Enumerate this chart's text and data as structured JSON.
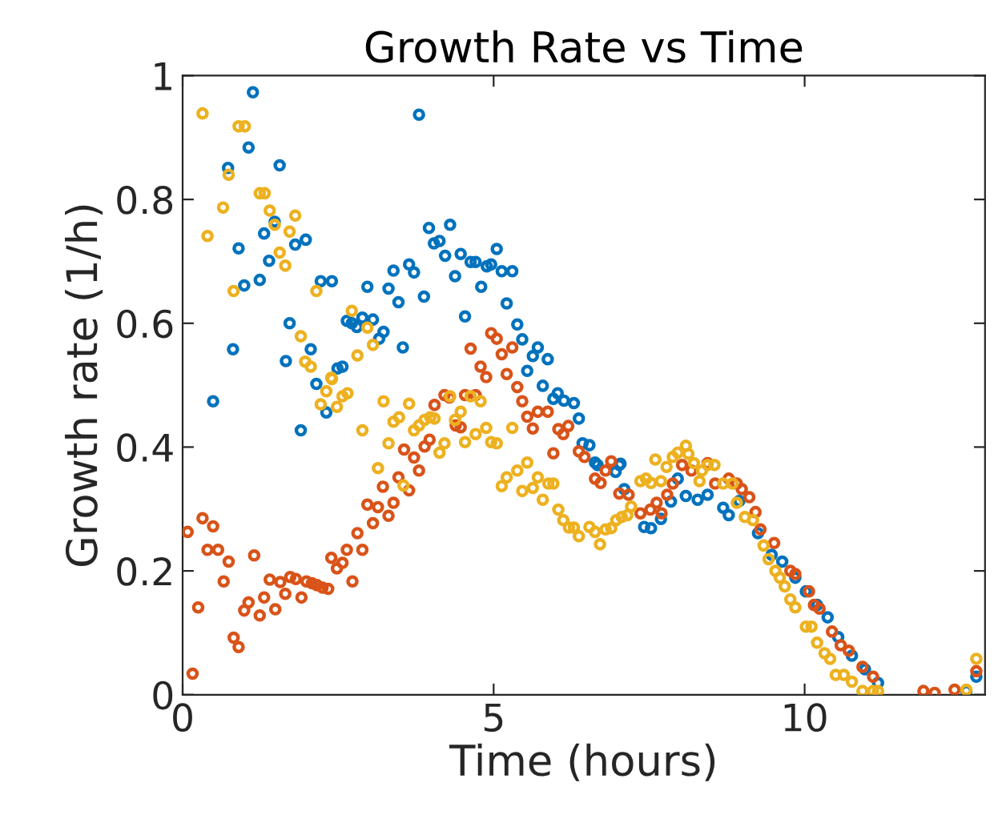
{
  "chart_data": {
    "type": "scatter",
    "title": "Growth Rate vs Time",
    "xlabel": "Time (hours)",
    "ylabel": "Growth rate (1/h)",
    "xlim": [
      0,
      12.9
    ],
    "ylim": [
      0,
      1
    ],
    "xticks": [
      0,
      5,
      10
    ],
    "yticks": [
      0,
      {
        "value": 0.2,
        "label": "0.2"
      },
      {
        "value": 0.4,
        "label": "0.4"
      },
      {
        "value": 0.6,
        "label": "0.6"
      },
      {
        "value": 0.8,
        "label": "0.8"
      },
      1
    ],
    "grid": false,
    "marker": "circle",
    "series": [
      {
        "color": "#0072bd",
        "x": [
          0.49,
          0.73,
          0.81,
          0.9,
          0.99,
          1.06,
          1.13,
          1.24,
          1.31,
          1.39,
          1.48,
          1.56,
          1.66,
          1.72,
          1.81,
          1.9,
          1.98,
          2.06,
          2.15,
          2.22,
          2.31,
          2.4,
          2.49,
          2.57,
          2.64,
          2.72,
          2.8,
          2.89,
          2.97,
          3.06,
          3.16,
          3.23,
          3.31,
          3.39,
          3.47,
          3.54,
          3.64,
          3.72,
          3.8,
          3.88,
          3.96,
          4.04,
          4.13,
          4.22,
          4.3,
          4.38,
          4.47,
          4.54,
          4.63,
          4.71,
          4.8,
          4.89,
          4.96,
          5.05,
          5.13,
          5.21,
          5.3,
          5.38,
          5.46,
          5.54,
          5.63,
          5.71,
          5.79,
          5.87,
          5.96,
          6.03,
          6.13,
          6.29,
          6.37,
          6.43,
          6.54,
          6.63,
          6.67,
          6.96,
          7.02,
          7.04,
          7.1,
          7.42,
          7.53,
          7.69,
          7.85,
          7.96,
          8.09,
          8.28,
          8.44,
          8.69,
          8.78,
          8.95,
          9.25,
          9.47,
          9.64,
          9.85,
          10.02,
          10.2,
          10.37,
          10.54,
          10.76,
          10.97,
          11.18,
          12.6,
          12.76
        ],
        "values": [
          0.474,
          0.851,
          0.558,
          0.721,
          0.661,
          0.884,
          0.973,
          0.67,
          0.745,
          0.701,
          0.764,
          0.855,
          0.539,
          0.6,
          0.727,
          0.427,
          0.735,
          0.558,
          0.502,
          0.668,
          0.456,
          0.668,
          0.527,
          0.53,
          0.604,
          0.6,
          0.594,
          0.609,
          0.659,
          0.606,
          0.575,
          0.586,
          0.656,
          0.685,
          0.634,
          0.561,
          0.695,
          0.682,
          0.937,
          0.643,
          0.754,
          0.729,
          0.733,
          0.709,
          0.759,
          0.676,
          0.712,
          0.611,
          0.699,
          0.699,
          0.659,
          0.692,
          0.695,
          0.72,
          0.684,
          0.632,
          0.684,
          0.598,
          0.574,
          0.523,
          0.547,
          0.561,
          0.499,
          0.542,
          0.478,
          0.487,
          0.475,
          0.471,
          0.446,
          0.406,
          0.403,
          0.375,
          0.371,
          0.36,
          0.371,
          0.373,
          0.332,
          0.271,
          0.269,
          0.284,
          0.312,
          0.349,
          0.321,
          0.315,
          0.323,
          0.302,
          0.29,
          0.313,
          0.261,
          0.226,
          0.215,
          0.189,
          0.167,
          0.145,
          0.125,
          0.093,
          0.063,
          0.041,
          0.019,
          0.006,
          0.029
        ]
      },
      {
        "color": "#d95319",
        "x": [
          0.08,
          0.16,
          0.25,
          0.32,
          0.4,
          0.49,
          0.57,
          0.66,
          0.74,
          0.82,
          0.9,
          0.99,
          1.06,
          1.15,
          1.24,
          1.31,
          1.4,
          1.49,
          1.57,
          1.65,
          1.73,
          1.82,
          1.91,
          1.99,
          2.08,
          2.16,
          2.25,
          2.34,
          2.39,
          2.48,
          2.57,
          2.64,
          2.73,
          2.81,
          2.89,
          2.97,
          3.06,
          3.14,
          3.22,
          3.31,
          3.39,
          3.47,
          3.56,
          3.64,
          3.72,
          3.8,
          3.89,
          3.97,
          4.05,
          4.21,
          4.29,
          4.39,
          4.47,
          4.54,
          4.63,
          4.71,
          4.79,
          4.88,
          4.96,
          5.05,
          5.13,
          5.21,
          5.3,
          5.38,
          5.46,
          5.54,
          5.63,
          5.71,
          5.87,
          5.96,
          6.04,
          6.12,
          6.2,
          6.37,
          6.46,
          6.63,
          6.72,
          6.8,
          6.89,
          7.02,
          7.17,
          7.36,
          7.52,
          7.62,
          7.7,
          7.79,
          7.88,
          8.03,
          8.18,
          8.44,
          8.56,
          8.78,
          8.91,
          8.99,
          9.11,
          9.21,
          9.29,
          9.51,
          9.77,
          9.85,
          10.07,
          10.15,
          10.24,
          10.44,
          10.58,
          10.71,
          10.93,
          11.1,
          11.91,
          12.09,
          12.41,
          12.76
        ],
        "values": [
          0.263,
          0.034,
          0.141,
          0.285,
          0.234,
          0.272,
          0.234,
          0.183,
          0.215,
          0.092,
          0.077,
          0.136,
          0.149,
          0.225,
          0.128,
          0.157,
          0.186,
          0.138,
          0.182,
          0.163,
          0.19,
          0.187,
          0.157,
          0.183,
          0.18,
          0.177,
          0.173,
          0.171,
          0.221,
          0.204,
          0.213,
          0.234,
          0.183,
          0.261,
          0.234,
          0.307,
          0.277,
          0.303,
          0.336,
          0.289,
          0.31,
          0.351,
          0.396,
          0.33,
          0.383,
          0.362,
          0.401,
          0.412,
          0.468,
          0.484,
          0.48,
          0.435,
          0.432,
          0.484,
          0.559,
          0.484,
          0.53,
          0.513,
          0.584,
          0.575,
          0.55,
          0.518,
          0.561,
          0.497,
          0.474,
          0.449,
          0.43,
          0.457,
          0.457,
          0.39,
          0.429,
          0.421,
          0.434,
          0.393,
          0.384,
          0.349,
          0.342,
          0.362,
          0.377,
          0.325,
          0.323,
          0.293,
          0.299,
          0.31,
          0.293,
          0.323,
          0.341,
          0.371,
          0.362,
          0.374,
          0.341,
          0.349,
          0.341,
          0.332,
          0.319,
          0.295,
          0.267,
          0.245,
          0.2,
          0.195,
          0.167,
          0.145,
          0.139,
          0.102,
          0.08,
          0.071,
          0.045,
          0.029,
          0.006,
          0.003,
          0.008,
          0.038
        ]
      },
      {
        "color": "#edb120",
        "x": [
          0.32,
          0.4,
          0.65,
          0.74,
          0.82,
          0.9,
          1.0,
          1.24,
          1.32,
          1.4,
          1.48,
          1.56,
          1.65,
          1.72,
          1.81,
          1.9,
          1.97,
          2.06,
          2.15,
          2.22,
          2.31,
          2.39,
          2.4,
          2.48,
          2.57,
          2.65,
          2.72,
          2.81,
          2.89,
          2.97,
          3.06,
          3.14,
          3.23,
          3.31,
          3.39,
          3.48,
          3.55,
          3.64,
          3.72,
          3.8,
          3.89,
          3.98,
          4.05,
          4.13,
          4.21,
          4.3,
          4.38,
          4.47,
          4.54,
          4.63,
          4.71,
          4.79,
          4.88,
          4.96,
          5.05,
          5.13,
          5.21,
          5.3,
          5.38,
          5.46,
          5.54,
          5.63,
          5.71,
          5.79,
          5.88,
          5.96,
          6.04,
          6.12,
          6.21,
          6.29,
          6.37,
          6.54,
          6.63,
          6.71,
          6.8,
          6.89,
          6.97,
          7.06,
          7.15,
          7.21,
          7.36,
          7.45,
          7.53,
          7.6,
          7.69,
          7.78,
          7.88,
          7.96,
          8.09,
          8.13,
          8.22,
          8.31,
          8.35,
          8.44,
          8.55,
          8.69,
          8.84,
          8.91,
          9.04,
          9.17,
          9.34,
          9.42,
          9.53,
          9.6,
          9.68,
          9.77,
          9.85,
          10.02,
          10.11,
          10.2,
          10.32,
          10.41,
          10.5,
          10.63,
          10.76,
          10.93,
          11.1,
          11.18,
          12.6,
          12.76
        ],
        "values": [
          0.939,
          0.741,
          0.787,
          0.84,
          0.652,
          0.918,
          0.918,
          0.81,
          0.81,
          0.782,
          0.759,
          0.714,
          0.693,
          0.748,
          0.774,
          0.579,
          0.538,
          0.53,
          0.652,
          0.469,
          0.49,
          0.512,
          0.51,
          0.465,
          0.482,
          0.487,
          0.62,
          0.548,
          0.427,
          0.593,
          0.565,
          0.366,
          0.474,
          0.406,
          0.441,
          0.448,
          0.338,
          0.47,
          0.427,
          0.435,
          0.444,
          0.448,
          0.446,
          0.391,
          0.406,
          0.482,
          0.444,
          0.457,
          0.408,
          0.482,
          0.421,
          0.474,
          0.431,
          0.408,
          0.406,
          0.337,
          0.351,
          0.431,
          0.362,
          0.329,
          0.375,
          0.334,
          0.351,
          0.315,
          0.341,
          0.341,
          0.299,
          0.282,
          0.27,
          0.27,
          0.256,
          0.271,
          0.263,
          0.243,
          0.267,
          0.269,
          0.282,
          0.287,
          0.29,
          0.304,
          0.345,
          0.349,
          0.342,
          0.38,
          0.345,
          0.368,
          0.384,
          0.391,
          0.402,
          0.389,
          0.374,
          0.345,
          0.362,
          0.371,
          0.371,
          0.341,
          0.341,
          0.31,
          0.287,
          0.282,
          0.241,
          0.219,
          0.2,
          0.189,
          0.175,
          0.154,
          0.141,
          0.11,
          0.11,
          0.084,
          0.067,
          0.058,
          0.032,
          0.032,
          0.021,
          0.006,
          0.006,
          0.006,
          0.008,
          0.058
        ]
      }
    ]
  }
}
